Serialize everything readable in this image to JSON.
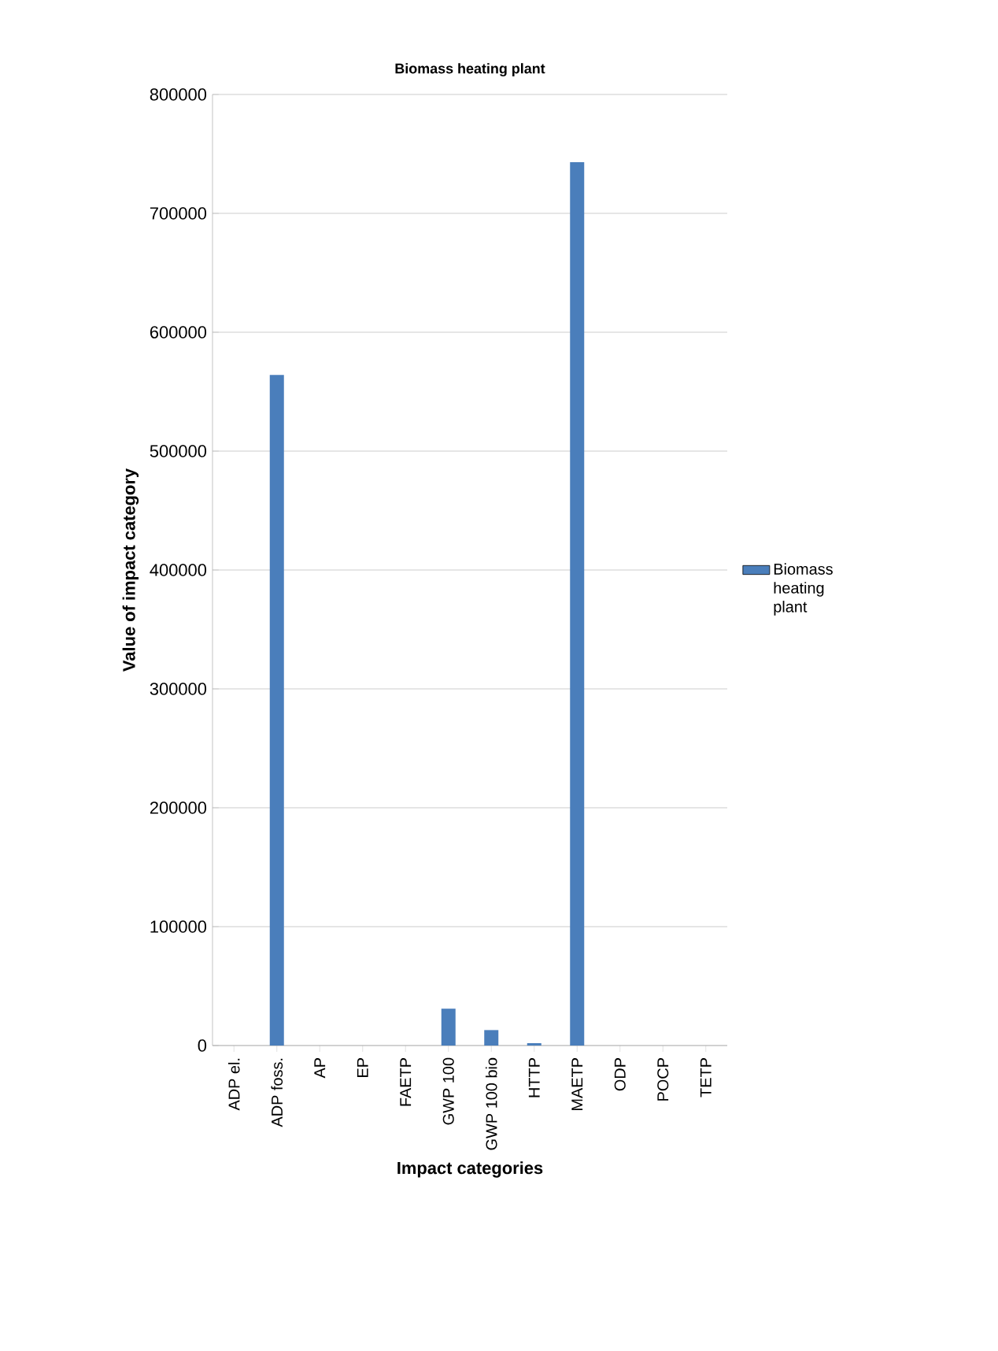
{
  "chart_data": {
    "type": "bar",
    "title": "Biomass heating plant",
    "xlabel": "Impact categories",
    "ylabel": "Value of impact category",
    "categories": [
      "ADP el.",
      "ADP foss.",
      "AP",
      "EP",
      "FAETP",
      "GWP 100",
      "GWP 100 bio",
      "HTTP",
      "MAETP",
      "ODP",
      "POCP",
      "TETP"
    ],
    "series": [
      {
        "name": "Biomass heating plant",
        "color": "#4a7ebb",
        "values": [
          0,
          564000,
          0,
          0,
          0,
          31000,
          13000,
          2000,
          743000,
          0,
          0,
          0
        ]
      }
    ],
    "ylim": [
      0,
      800000
    ],
    "yticks": [
      0,
      100000,
      200000,
      300000,
      400000,
      500000,
      600000,
      700000,
      800000
    ],
    "grid": "y",
    "legend": "right"
  }
}
